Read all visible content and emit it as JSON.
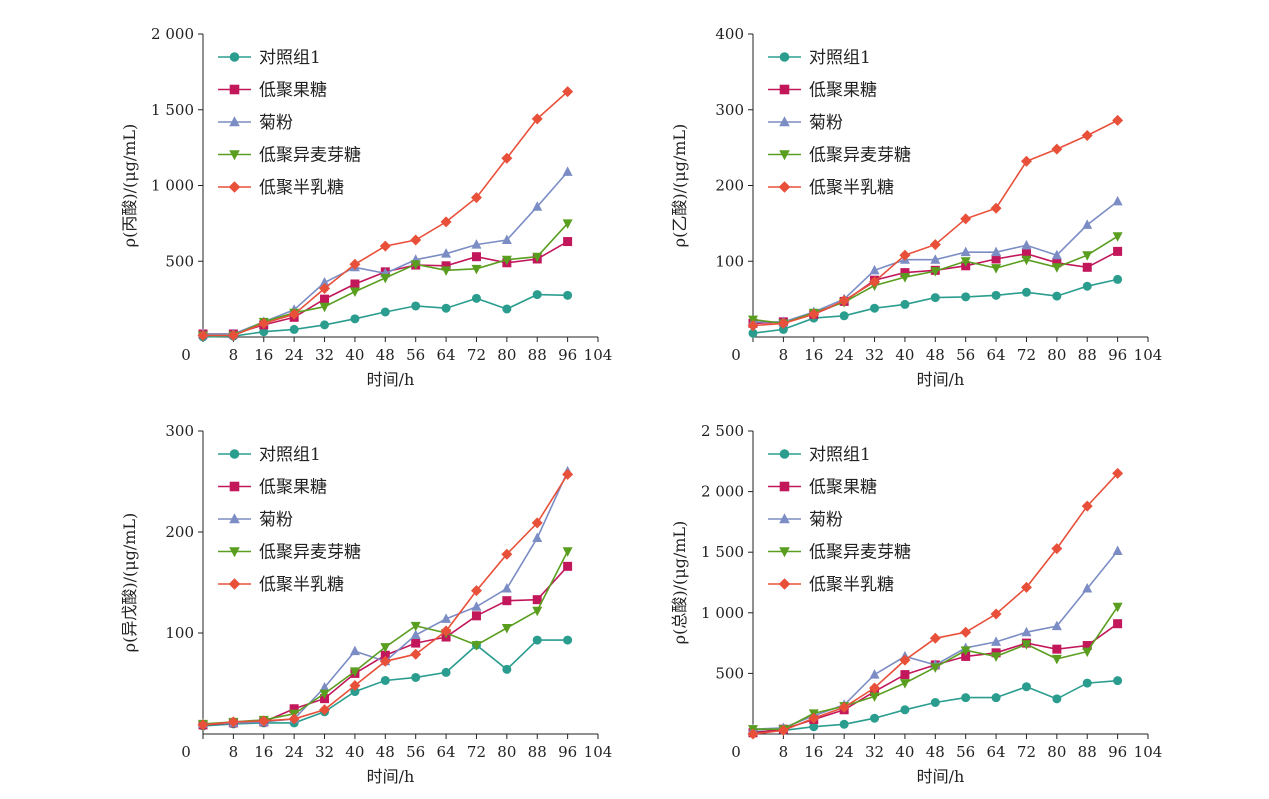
{
  "chart_data": [
    {
      "type": "line",
      "xlabel": "时间/h",
      "ylabel": "ρ(丙酸)/(μg/mL)",
      "xlim": [
        0,
        104
      ],
      "xticks": [
        0,
        8,
        16,
        24,
        32,
        40,
        48,
        56,
        64,
        72,
        80,
        88,
        96,
        104
      ],
      "ylim": [
        0,
        2000
      ],
      "ytick_values": [
        500,
        1000,
        1500,
        2000
      ],
      "ytick_labels": [
        "500",
        "1 000",
        "1 500",
        "2 000"
      ],
      "x": [
        0,
        8,
        16,
        24,
        32,
        40,
        48,
        56,
        64,
        72,
        80,
        88,
        96
      ],
      "legend_position": "top-left",
      "grid": false,
      "series": [
        {
          "name": "对照组1",
          "marker": "circle",
          "color": "#2a9d8f",
          "values": [
            0,
            5,
            35,
            50,
            80,
            120,
            165,
            205,
            190,
            255,
            185,
            280,
            275
          ]
        },
        {
          "name": "低聚果糖",
          "marker": "square",
          "color": "#c2185b",
          "values": [
            20,
            20,
            80,
            130,
            250,
            350,
            430,
            475,
            470,
            530,
            490,
            515,
            630
          ]
        },
        {
          "name": "菊粉",
          "marker": "triangle-up",
          "color": "#7b8dc4",
          "values": [
            20,
            20,
            100,
            180,
            360,
            460,
            420,
            510,
            550,
            610,
            640,
            860,
            1090
          ]
        },
        {
          "name": "低聚异麦芽糖",
          "marker": "triangle-down",
          "color": "#5a9e20",
          "values": [
            10,
            10,
            100,
            160,
            200,
            300,
            390,
            480,
            440,
            450,
            510,
            530,
            750
          ]
        },
        {
          "name": "低聚半乳糖",
          "marker": "diamond",
          "color": "#e8503a",
          "values": [
            10,
            10,
            90,
            150,
            320,
            480,
            600,
            640,
            760,
            920,
            1180,
            1440,
            1620
          ]
        }
      ]
    },
    {
      "type": "line",
      "xlabel": "时间/h",
      "ylabel": "ρ(乙酸)/(μg/mL)",
      "xlim": [
        0,
        104
      ],
      "xticks": [
        0,
        8,
        16,
        24,
        32,
        40,
        48,
        56,
        64,
        72,
        80,
        88,
        96,
        104
      ],
      "ylim": [
        0,
        400
      ],
      "ytick_values": [
        100,
        200,
        300,
        400
      ],
      "ytick_labels": [
        "100",
        "200",
        "300",
        "400"
      ],
      "x": [
        0,
        8,
        16,
        24,
        32,
        40,
        48,
        56,
        64,
        72,
        80,
        88,
        96
      ],
      "legend_position": "top-left",
      "grid": false,
      "series": [
        {
          "name": "对照组1",
          "marker": "circle",
          "color": "#2a9d8f",
          "values": [
            5,
            10,
            25,
            28,
            38,
            43,
            52,
            53,
            55,
            59,
            54,
            67,
            76
          ]
        },
        {
          "name": "低聚果糖",
          "marker": "square",
          "color": "#c2185b",
          "values": [
            18,
            20,
            30,
            47,
            75,
            85,
            88,
            94,
            103,
            110,
            98,
            92,
            113
          ]
        },
        {
          "name": "菊粉",
          "marker": "triangle-up",
          "color": "#7b8dc4",
          "values": [
            20,
            20,
            33,
            50,
            88,
            102,
            102,
            112,
            112,
            121,
            108,
            148,
            179
          ]
        },
        {
          "name": "低聚异麦芽糖",
          "marker": "triangle-down",
          "color": "#5a9e20",
          "values": [
            23,
            18,
            32,
            46,
            68,
            79,
            87,
            100,
            91,
            102,
            92,
            108,
            133
          ]
        },
        {
          "name": "低聚半乳糖",
          "marker": "diamond",
          "color": "#e8503a",
          "values": [
            15,
            18,
            30,
            48,
            73,
            108,
            122,
            156,
            170,
            232,
            248,
            266,
            286
          ]
        }
      ]
    },
    {
      "type": "line",
      "xlabel": "时间/h",
      "ylabel": "ρ(异戊酸)/(μg/mL)",
      "xlim": [
        0,
        104
      ],
      "xticks": [
        0,
        8,
        16,
        24,
        32,
        40,
        48,
        56,
        64,
        72,
        80,
        88,
        96,
        104
      ],
      "ylim": [
        0,
        300
      ],
      "ytick_values": [
        100,
        200,
        300
      ],
      "ytick_labels": [
        "100",
        "200",
        "300"
      ],
      "x": [
        0,
        8,
        16,
        24,
        32,
        40,
        48,
        56,
        64,
        72,
        80,
        88,
        96
      ],
      "legend_position": "top-left",
      "grid": false,
      "series": [
        {
          "name": "对照组1",
          "marker": "circle",
          "color": "#2a9d8f",
          "values": [
            8,
            10,
            11,
            11,
            22,
            42,
            53,
            56,
            61,
            88,
            64,
            93,
            93
          ]
        },
        {
          "name": "低聚果糖",
          "marker": "square",
          "color": "#c2185b",
          "values": [
            9,
            11,
            12,
            25,
            35,
            60,
            78,
            90,
            96,
            117,
            132,
            133,
            166
          ]
        },
        {
          "name": "菊粉",
          "marker": "triangle-up",
          "color": "#7b8dc4",
          "values": [
            10,
            11,
            12,
            15,
            46,
            82,
            72,
            98,
            114,
            126,
            144,
            194,
            260
          ]
        },
        {
          "name": "低聚异麦芽糖",
          "marker": "triangle-down",
          "color": "#5a9e20",
          "values": [
            10,
            12,
            14,
            20,
            40,
            62,
            86,
            107,
            100,
            88,
            105,
            122,
            181
          ]
        },
        {
          "name": "低聚半乳糖",
          "marker": "diamond",
          "color": "#e8503a",
          "values": [
            9,
            12,
            13,
            15,
            24,
            48,
            72,
            79,
            102,
            142,
            178,
            209,
            257
          ]
        }
      ]
    },
    {
      "type": "line",
      "xlabel": "时间/h",
      "ylabel": "ρ(总酸)/(μg/mL)",
      "xlim": [
        0,
        104
      ],
      "xticks": [
        0,
        8,
        16,
        24,
        32,
        40,
        48,
        56,
        64,
        72,
        80,
        88,
        96,
        104
      ],
      "ylim": [
        0,
        2500
      ],
      "ytick_values": [
        500,
        1000,
        1500,
        2000,
        2500
      ],
      "ytick_labels": [
        "500",
        "1 000",
        "1 500",
        "2 000",
        "2 500"
      ],
      "x": [
        0,
        8,
        16,
        24,
        32,
        40,
        48,
        56,
        64,
        72,
        80,
        88,
        96
      ],
      "legend_position": "top-left",
      "grid": false,
      "series": [
        {
          "name": "对照组1",
          "marker": "circle",
          "color": "#2a9d8f",
          "values": [
            20,
            30,
            60,
            80,
            130,
            200,
            260,
            300,
            300,
            390,
            290,
            420,
            440
          ]
        },
        {
          "name": "低聚果糖",
          "marker": "square",
          "color": "#c2185b",
          "values": [
            10,
            40,
            120,
            200,
            350,
            490,
            570,
            640,
            670,
            750,
            700,
            730,
            910
          ]
        },
        {
          "name": "菊粉",
          "marker": "triangle-up",
          "color": "#7b8dc4",
          "values": [
            40,
            50,
            150,
            240,
            490,
            640,
            570,
            710,
            760,
            840,
            890,
            1200,
            1510
          ]
        },
        {
          "name": "低聚异麦芽糖",
          "marker": "triangle-down",
          "color": "#5a9e20",
          "values": [
            40,
            40,
            170,
            230,
            310,
            420,
            550,
            690,
            640,
            740,
            620,
            680,
            1050
          ]
        },
        {
          "name": "低聚半乳糖",
          "marker": "diamond",
          "color": "#e8503a",
          "values": [
            0,
            30,
            130,
            220,
            380,
            610,
            790,
            840,
            990,
            1210,
            1530,
            1880,
            2150
          ]
        }
      ]
    }
  ]
}
